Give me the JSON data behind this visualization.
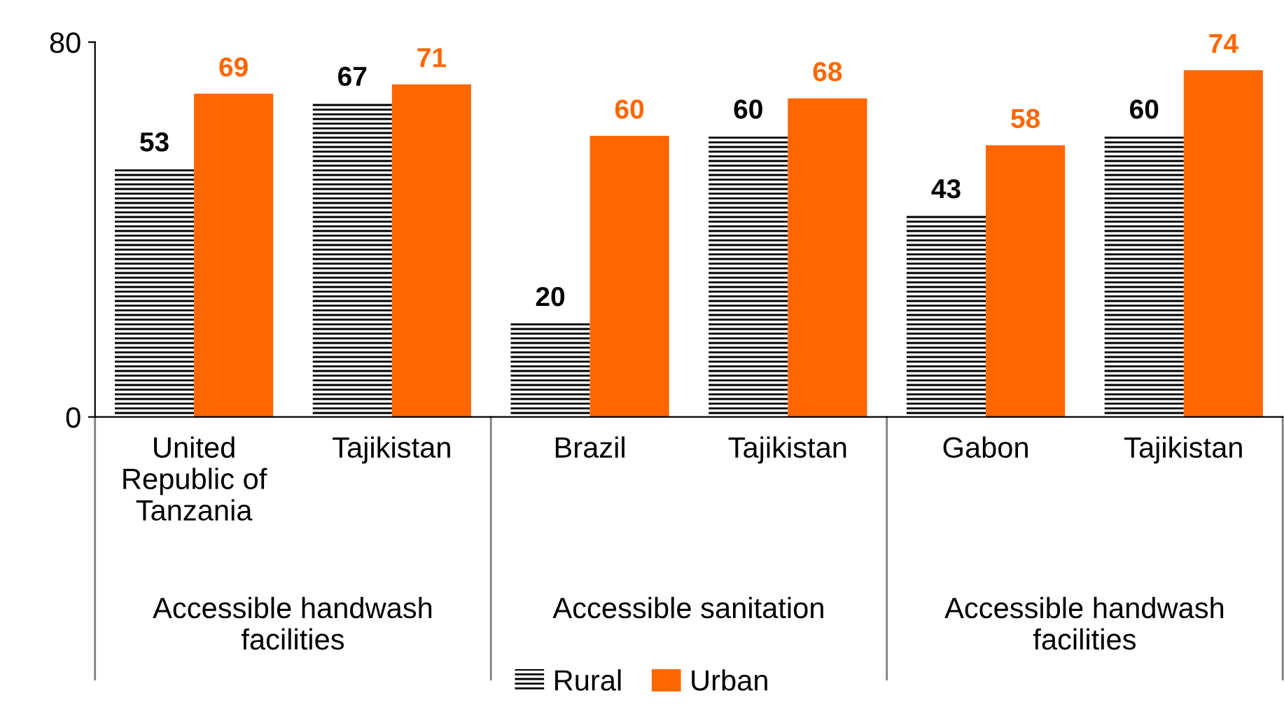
{
  "chart_data": {
    "type": "bar",
    "categories": [
      "United\nRepublic of\nTanzania",
      "Tajikistan",
      "Brazil",
      "Tajikistan",
      "Gabon",
      "Tajikistan"
    ],
    "series": [
      {
        "name": "Rural",
        "color": "#000000",
        "values": [
          53,
          67,
          20,
          60,
          43,
          60
        ]
      },
      {
        "name": "Urban",
        "color": "#ff6600",
        "values": [
          69,
          71,
          60,
          68,
          58,
          74
        ]
      }
    ],
    "annotations": [
      "Accessible handwash\nfacilities",
      "Accessible sanitation",
      "Accessible handwash\nfacilities"
    ],
    "ylim": [
      0,
      80
    ],
    "yticks": [
      0,
      80
    ],
    "grid": false,
    "legend": "bottom",
    "data_labels": true
  }
}
